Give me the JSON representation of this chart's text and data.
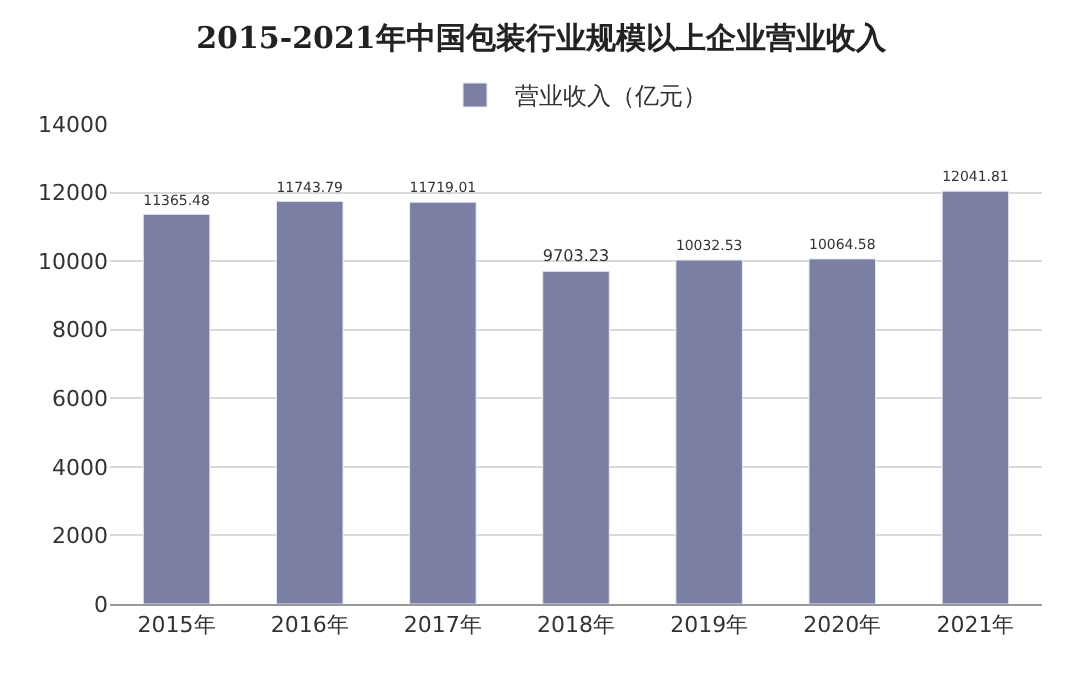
{
  "chart_data": {
    "type": "bar",
    "title": "2015-2021年中国包装行业规模以上企业营业收入",
    "categories": [
      "2015年",
      "2016年",
      "2017年",
      "2018年",
      "2019年",
      "2020年",
      "2021年"
    ],
    "series": [
      {
        "name": "营业收入（亿元）",
        "color": "#7b7fa3",
        "values": [
          11365.48,
          11743.79,
          11719.01,
          9703.23,
          10032.53,
          10064.58,
          12041.81
        ]
      }
    ],
    "ylim": [
      0,
      14000
    ],
    "yticks": [
      0,
      2000,
      4000,
      6000,
      8000,
      10000,
      12000,
      14000
    ],
    "grid": "y",
    "legend": "top",
    "data_labels": true
  }
}
